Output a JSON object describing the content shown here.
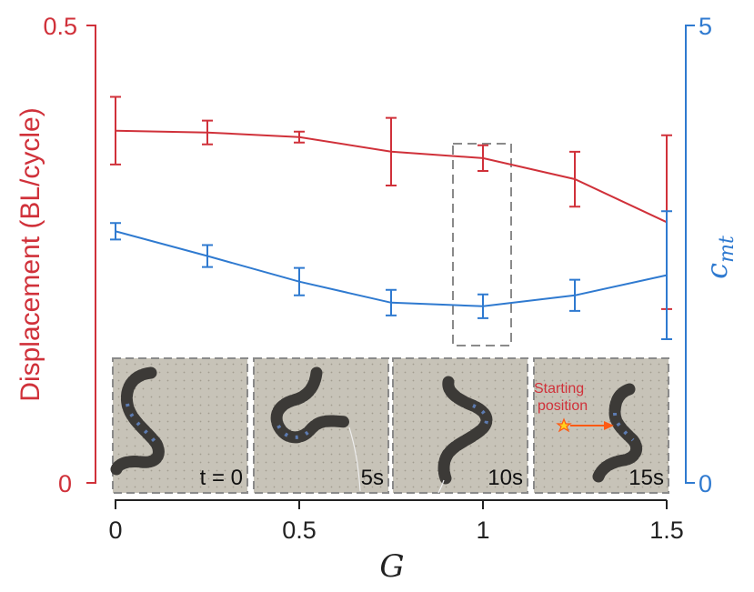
{
  "colors": {
    "red": "#d0313a",
    "blue": "#2f7ad0",
    "axis": "#222222",
    "highlight_box": "#8a8a8a",
    "annotation": "#ff5a14"
  },
  "chart_data": {
    "type": "line",
    "x": [
      0,
      0.25,
      0.5,
      0.75,
      1,
      1.25,
      1.5
    ],
    "xlabel": "G",
    "xlim": [
      0,
      1.5
    ],
    "xticks": [
      "0",
      "0.5",
      "1",
      "1.5"
    ],
    "series": [
      {
        "axis": "left",
        "values": [
          0.385,
          0.383,
          0.378,
          0.362,
          0.355,
          0.332,
          0.285
        ],
        "errors": [
          0.037,
          0.013,
          0.006,
          0.037,
          0.014,
          0.03,
          0.095
        ]
      },
      {
        "axis": "right",
        "values": [
          2.75,
          2.48,
          2.2,
          1.97,
          1.93,
          2.05,
          2.27
        ],
        "errors": [
          0.09,
          0.12,
          0.15,
          0.14,
          0.13,
          0.17,
          0.7
        ]
      }
    ],
    "ylabel_left": "Displacement (BL/cycle)",
    "ylim_left": [
      0,
      0.5
    ],
    "yticks_left": [
      "0",
      "0.5"
    ],
    "ylabel_right": "c",
    "ylabel_right_sub": "mt",
    "ylim_right": [
      0,
      5
    ],
    "yticks_right": [
      "0",
      "5"
    ],
    "highlight_x": 1,
    "inset_frames": [
      "t = 0",
      "5s",
      "10s",
      "15s"
    ],
    "annotation": {
      "line1": "Starting",
      "line2": "position"
    }
  }
}
